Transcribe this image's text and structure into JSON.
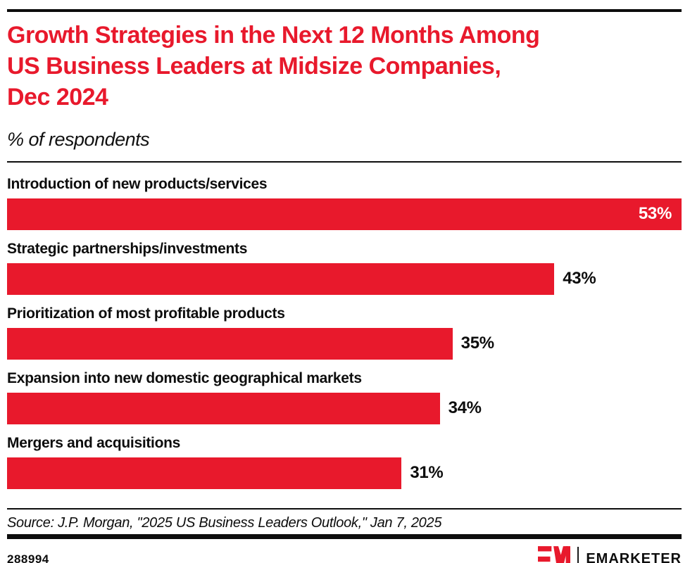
{
  "header": {
    "title_lines": [
      "Growth Strategies in the Next 12 Months Among",
      "US Business Leaders at Midsize Companies,",
      "Dec 2024"
    ],
    "title_color": "#E8192C",
    "subtitle": "% of respondents"
  },
  "chart_data": {
    "type": "bar",
    "orientation": "horizontal",
    "title": "Growth Strategies in the Next 12 Months Among US Business Leaders at Midsize Companies, Dec 2024",
    "subtitle": "% of respondents",
    "unit": "%",
    "xlim": [
      0,
      53
    ],
    "grid": false,
    "legend": false,
    "bar_color": "#E8192C",
    "categories": [
      "Introduction of new products/services",
      "Strategic partnerships/investments",
      "Prioritization of most profitable products",
      "Expansion into new domestic geographical markets",
      "Mergers and acquisitions"
    ],
    "values": [
      53,
      43,
      35,
      34,
      31
    ],
    "bars": [
      {
        "label": "Introduction of new products/services",
        "value": 53,
        "display": "53%",
        "value_position": "inside"
      },
      {
        "label": "Strategic partnerships/investments",
        "value": 43,
        "display": "43%",
        "value_position": "outside"
      },
      {
        "label": "Prioritization of most profitable products",
        "value": 35,
        "display": "35%",
        "value_position": "outside"
      },
      {
        "label": "Expansion into new domestic geographical markets",
        "value": 34,
        "display": "34%",
        "value_position": "outside"
      },
      {
        "label": "Mergers and acquisitions",
        "value": 31,
        "display": "31%",
        "value_position": "outside"
      }
    ]
  },
  "source": "Source: J.P. Morgan, \"2025 US Business Leaders Outlook,\" Jan 7, 2025",
  "footer": {
    "chart_id": "288994",
    "brand_name": "EMARKETER",
    "brand_color": "#E8192C"
  }
}
